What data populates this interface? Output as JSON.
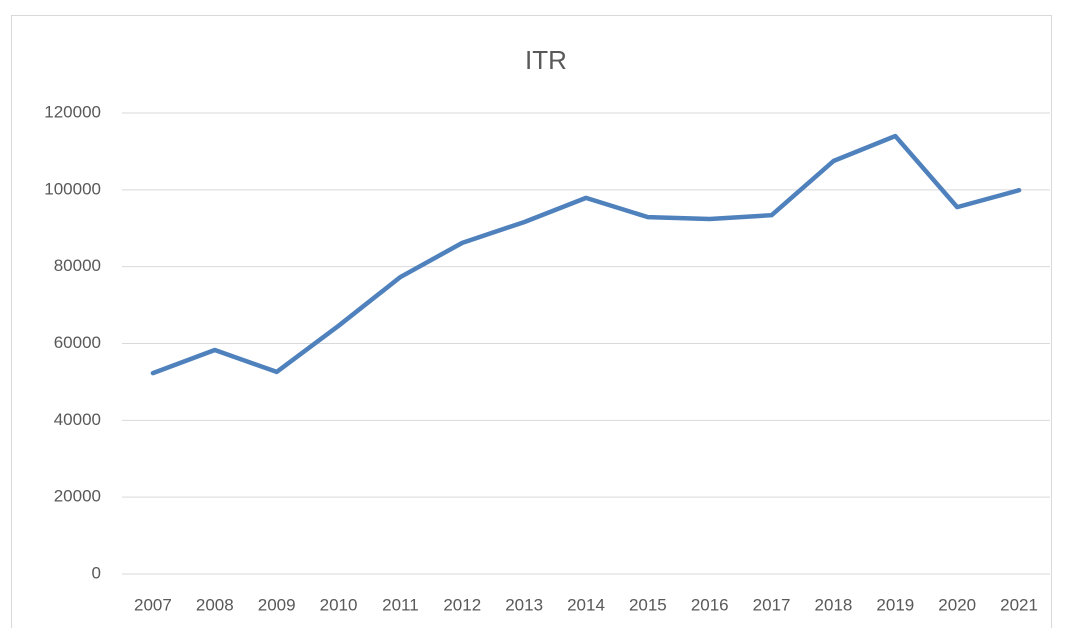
{
  "chart_data": {
    "type": "line",
    "title": "ITR",
    "categories": [
      "2007",
      "2008",
      "2009",
      "2010",
      "2011",
      "2012",
      "2013",
      "2014",
      "2015",
      "2016",
      "2017",
      "2018",
      "2019",
      "2020",
      "2021"
    ],
    "series": [
      {
        "name": "ITR",
        "color": "#4f81bd",
        "values": [
          52300,
          58300,
          52600,
          64600,
          77300,
          86200,
          91600,
          97900,
          92900,
          92400,
          93400,
          107500,
          114000,
          95500,
          99900
        ]
      }
    ],
    "ylim": [
      0,
      120000
    ],
    "yticks": [
      0,
      20000,
      40000,
      60000,
      80000,
      100000,
      120000
    ],
    "grid": true
  }
}
